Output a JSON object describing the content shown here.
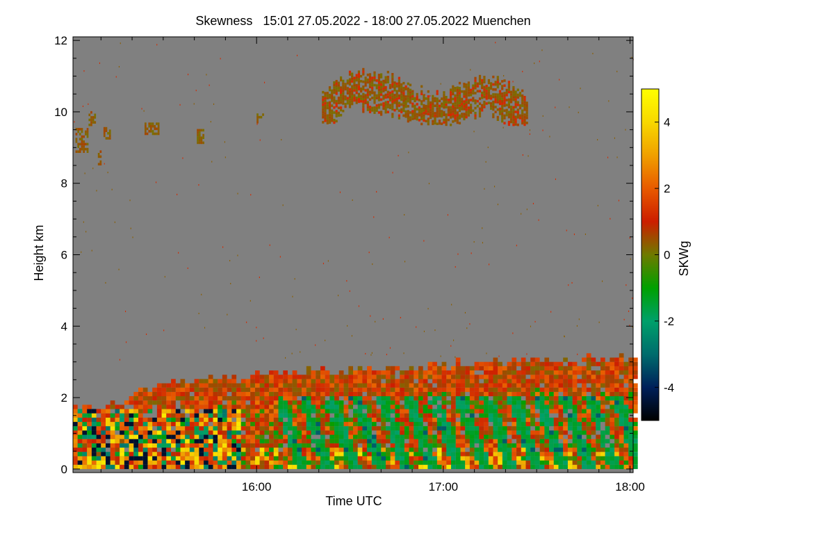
{
  "chart_data": {
    "type": "heatmap",
    "title": "Skewness   15:01 27.05.2022 - 18:00 27.05.2022 Muenchen",
    "xlabel": "Time UTC",
    "ylabel": "Height km",
    "xlim": [
      15.0167,
      18.0167
    ],
    "ylim": [
      -0.1,
      12.1
    ],
    "x_ticks": [
      {
        "value": 16.0,
        "label": "16:00"
      },
      {
        "value": 17.0,
        "label": "17:00"
      },
      {
        "value": 18.0,
        "label": "18:00"
      }
    ],
    "y_ticks": [
      {
        "value": 0,
        "label": "0"
      },
      {
        "value": 2,
        "label": "2"
      },
      {
        "value": 4,
        "label": "4"
      },
      {
        "value": 6,
        "label": "6"
      },
      {
        "value": 8,
        "label": "8"
      },
      {
        "value": 10,
        "label": "10"
      },
      {
        "value": 12,
        "label": "12"
      }
    ],
    "colorbar": {
      "label": "SKWg",
      "range": [
        -5,
        5
      ],
      "ticks": [
        {
          "value": -4,
          "label": "-4"
        },
        {
          "value": -2,
          "label": "-2"
        },
        {
          "value": 0,
          "label": "0"
        },
        {
          "value": 2,
          "label": "2"
        },
        {
          "value": 4,
          "label": "4"
        }
      ],
      "colors": [
        "#000000",
        "#00205a",
        "#006c6c",
        "#00a06a",
        "#00a000",
        "#6e7a00",
        "#cc1e00",
        "#e85a00",
        "#f0a000",
        "#f8d800",
        "#ffff00"
      ]
    },
    "background_color": "#808080",
    "features": [
      {
        "name": "boundary-layer-top",
        "height_km_start": 2.0,
        "height_km_end": 3.1,
        "description_value": "top rises from ~2.0 km at 15:20 to ~3.1 km at 18:00"
      },
      {
        "name": "cirrus-layer",
        "time_start": 16.35,
        "time_end": 17.45,
        "height_km": [
          9.6,
          11.2
        ]
      },
      {
        "name": "early-cloud-patches",
        "time_start": 15.0167,
        "time_end": 15.75,
        "height_km": [
          8.4,
          10.1
        ]
      }
    ]
  }
}
